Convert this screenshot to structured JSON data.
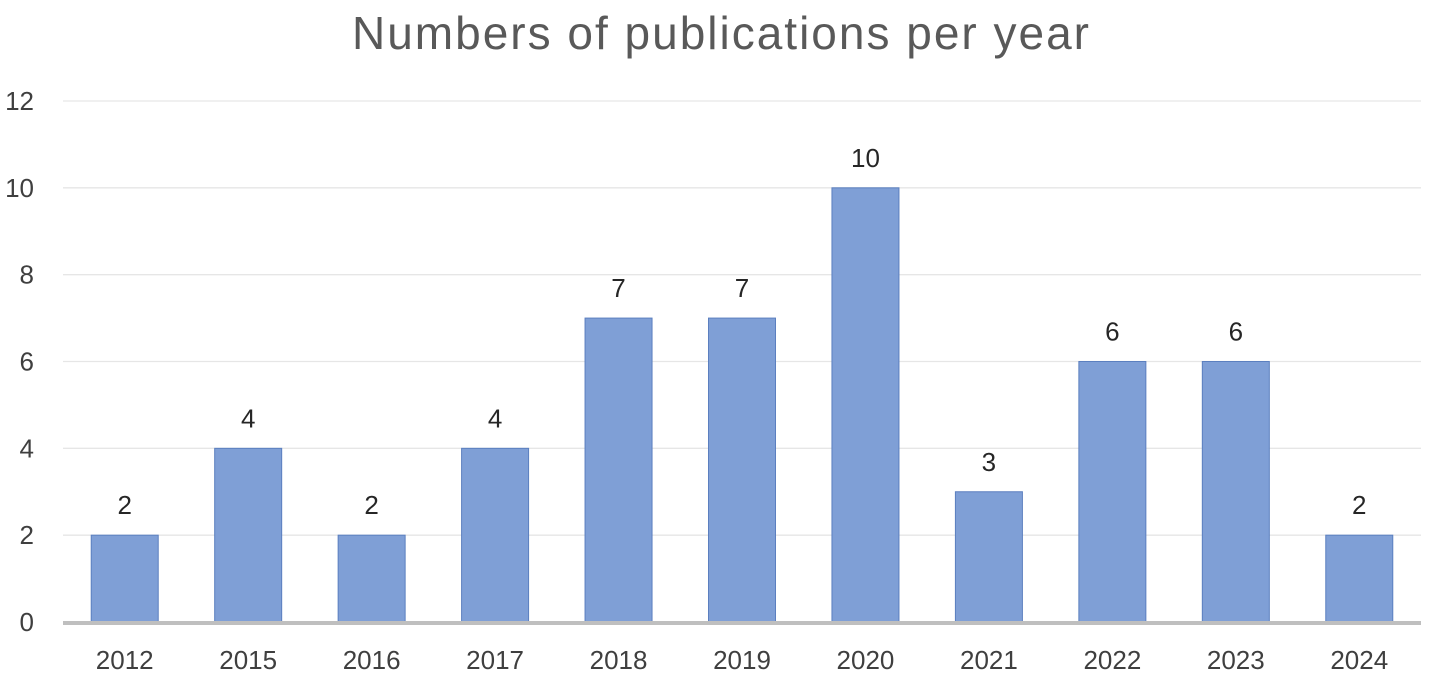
{
  "chart_data": {
    "type": "bar",
    "title": "Numbers of publications per year",
    "xlabel": "",
    "ylabel": "",
    "categories": [
      "2012",
      "2015",
      "2016",
      "2017",
      "2018",
      "2019",
      "2020",
      "2021",
      "2022",
      "2023",
      "2024"
    ],
    "values": [
      2,
      4,
      2,
      4,
      7,
      7,
      10,
      3,
      6,
      6,
      2
    ],
    "ylim": [
      0,
      12
    ],
    "yticks": [
      0,
      2,
      4,
      6,
      8,
      10,
      12
    ],
    "grid": true,
    "legend": "none",
    "bar_color": "#7f9fd6",
    "data_labels": true
  }
}
